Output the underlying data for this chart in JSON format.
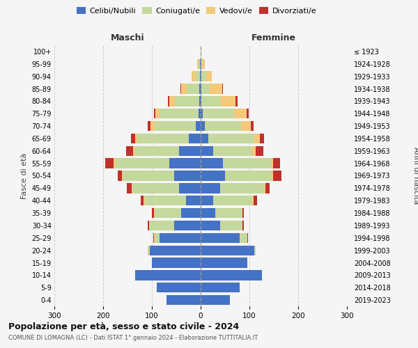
{
  "age_groups": [
    "0-4",
    "5-9",
    "10-14",
    "15-19",
    "20-24",
    "25-29",
    "30-34",
    "35-39",
    "40-44",
    "45-49",
    "50-54",
    "55-59",
    "60-64",
    "65-69",
    "70-74",
    "75-79",
    "80-84",
    "85-89",
    "90-94",
    "95-99",
    "100+"
  ],
  "birth_years": [
    "2019-2023",
    "2014-2018",
    "2009-2013",
    "2004-2008",
    "1999-2003",
    "1994-1998",
    "1989-1993",
    "1984-1988",
    "1979-1983",
    "1974-1978",
    "1969-1973",
    "1964-1968",
    "1959-1963",
    "1954-1958",
    "1949-1953",
    "1944-1948",
    "1939-1943",
    "1934-1938",
    "1929-1933",
    "1924-1928",
    "≤ 1923"
  ],
  "colors": {
    "celibi": "#4472C4",
    "coniugati": "#C5D89D",
    "vedovi": "#F5C97A",
    "divorziati": "#C0312B"
  },
  "maschi": {
    "celibi": [
      70,
      90,
      135,
      100,
      105,
      85,
      55,
      40,
      30,
      45,
      55,
      65,
      45,
      25,
      10,
      5,
      3,
      3,
      2,
      1,
      0
    ],
    "coniugati": [
      0,
      0,
      0,
      0,
      3,
      10,
      50,
      55,
      85,
      95,
      105,
      110,
      90,
      105,
      85,
      80,
      50,
      25,
      8,
      3,
      0
    ],
    "vedovi": [
      0,
      0,
      0,
      0,
      0,
      1,
      1,
      1,
      2,
      2,
      2,
      3,
      3,
      5,
      8,
      8,
      12,
      12,
      8,
      3,
      0
    ],
    "divorziati": [
      0,
      0,
      0,
      0,
      0,
      1,
      3,
      4,
      6,
      10,
      8,
      17,
      15,
      8,
      5,
      3,
      2,
      1,
      0,
      0,
      0
    ]
  },
  "femmine": {
    "celibi": [
      60,
      80,
      125,
      95,
      110,
      80,
      40,
      30,
      25,
      40,
      50,
      45,
      25,
      15,
      8,
      4,
      2,
      1,
      1,
      0,
      0
    ],
    "coniugati": [
      0,
      0,
      0,
      0,
      3,
      15,
      45,
      55,
      80,
      90,
      95,
      100,
      80,
      95,
      75,
      65,
      40,
      18,
      10,
      3,
      0
    ],
    "vedovi": [
      0,
      0,
      0,
      0,
      0,
      1,
      1,
      1,
      3,
      3,
      3,
      3,
      8,
      12,
      20,
      25,
      30,
      25,
      12,
      6,
      2
    ],
    "divorziati": [
      0,
      0,
      0,
      0,
      0,
      1,
      3,
      3,
      8,
      8,
      18,
      15,
      15,
      8,
      5,
      4,
      3,
      1,
      0,
      0,
      0
    ]
  },
  "xlim": 300,
  "title": "Popolazione per età, sesso e stato civile - 2024",
  "subtitle": "COMUNE DI LOMAGNA (LC) - Dati ISTAT 1° gennaio 2024 - Elaborazione TUTTITALIA.IT",
  "ylabel_left": "Fasce di età",
  "ylabel_right": "Anni di nascita",
  "xlabel_left": "Maschi",
  "xlabel_right": "Femmine",
  "legend_labels": [
    "Celibi/Nubili",
    "Coniugati/e",
    "Vedovi/e",
    "Divorziati/e"
  ],
  "background_color": "#f5f5f5",
  "plot_bg": "#f5f5f5",
  "grid_color": "#cccccc"
}
